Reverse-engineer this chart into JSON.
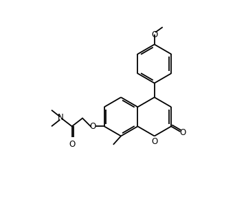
{
  "bg_color": "#ffffff",
  "line_color": "#000000",
  "lw": 1.3,
  "fs": 8.5,
  "xlim": [
    -1.5,
    8.5
  ],
  "ylim": [
    -1.0,
    9.5
  ],
  "figw": 3.58,
  "figh": 3.12,
  "dpi": 100
}
